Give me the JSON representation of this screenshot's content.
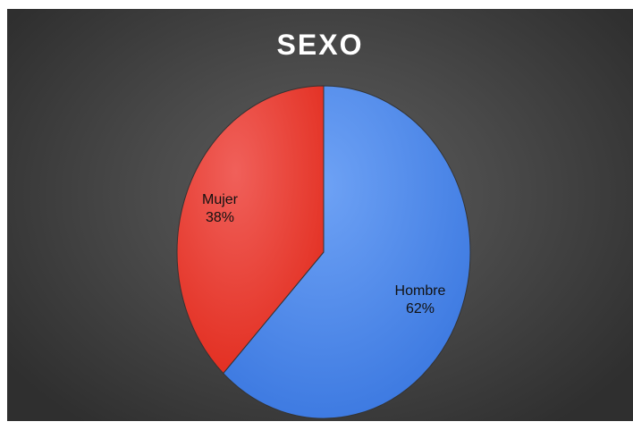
{
  "chart_data": {
    "type": "pie",
    "title": "SEXO",
    "slices": [
      {
        "label": "Hombre",
        "value": 62,
        "display": "62%",
        "color": "#4a86e8"
      },
      {
        "label": "Mujer",
        "value": 38,
        "display": "38%",
        "color": "#e8382b"
      }
    ],
    "legend": "none"
  }
}
